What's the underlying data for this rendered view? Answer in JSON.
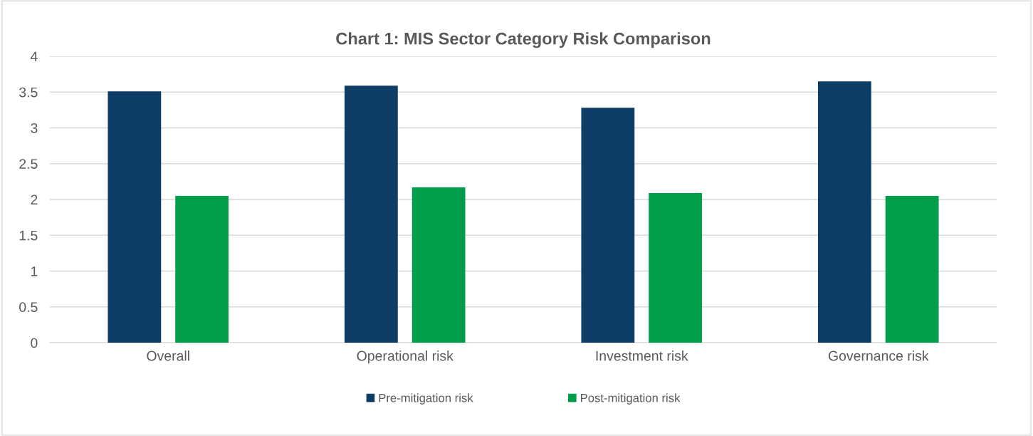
{
  "chart_data": {
    "type": "bar",
    "title": "Chart 1: MIS Sector Category Risk Comparison",
    "categories": [
      "Overall",
      "Operational risk",
      "Investment risk",
      "Governance risk"
    ],
    "series": [
      {
        "name": "Pre-mitigation risk",
        "color": "#0e3d66",
        "values": [
          3.51,
          3.59,
          3.28,
          3.65
        ]
      },
      {
        "name": "Post-mitigation risk",
        "color": "#009e4b",
        "values": [
          2.05,
          2.17,
          2.09,
          2.05
        ]
      }
    ],
    "ylim": [
      0,
      4
    ],
    "yticks": [
      0,
      0.5,
      1,
      1.5,
      2,
      2.5,
      3,
      3.5,
      4
    ],
    "grid": "y",
    "legend": "bottom"
  }
}
